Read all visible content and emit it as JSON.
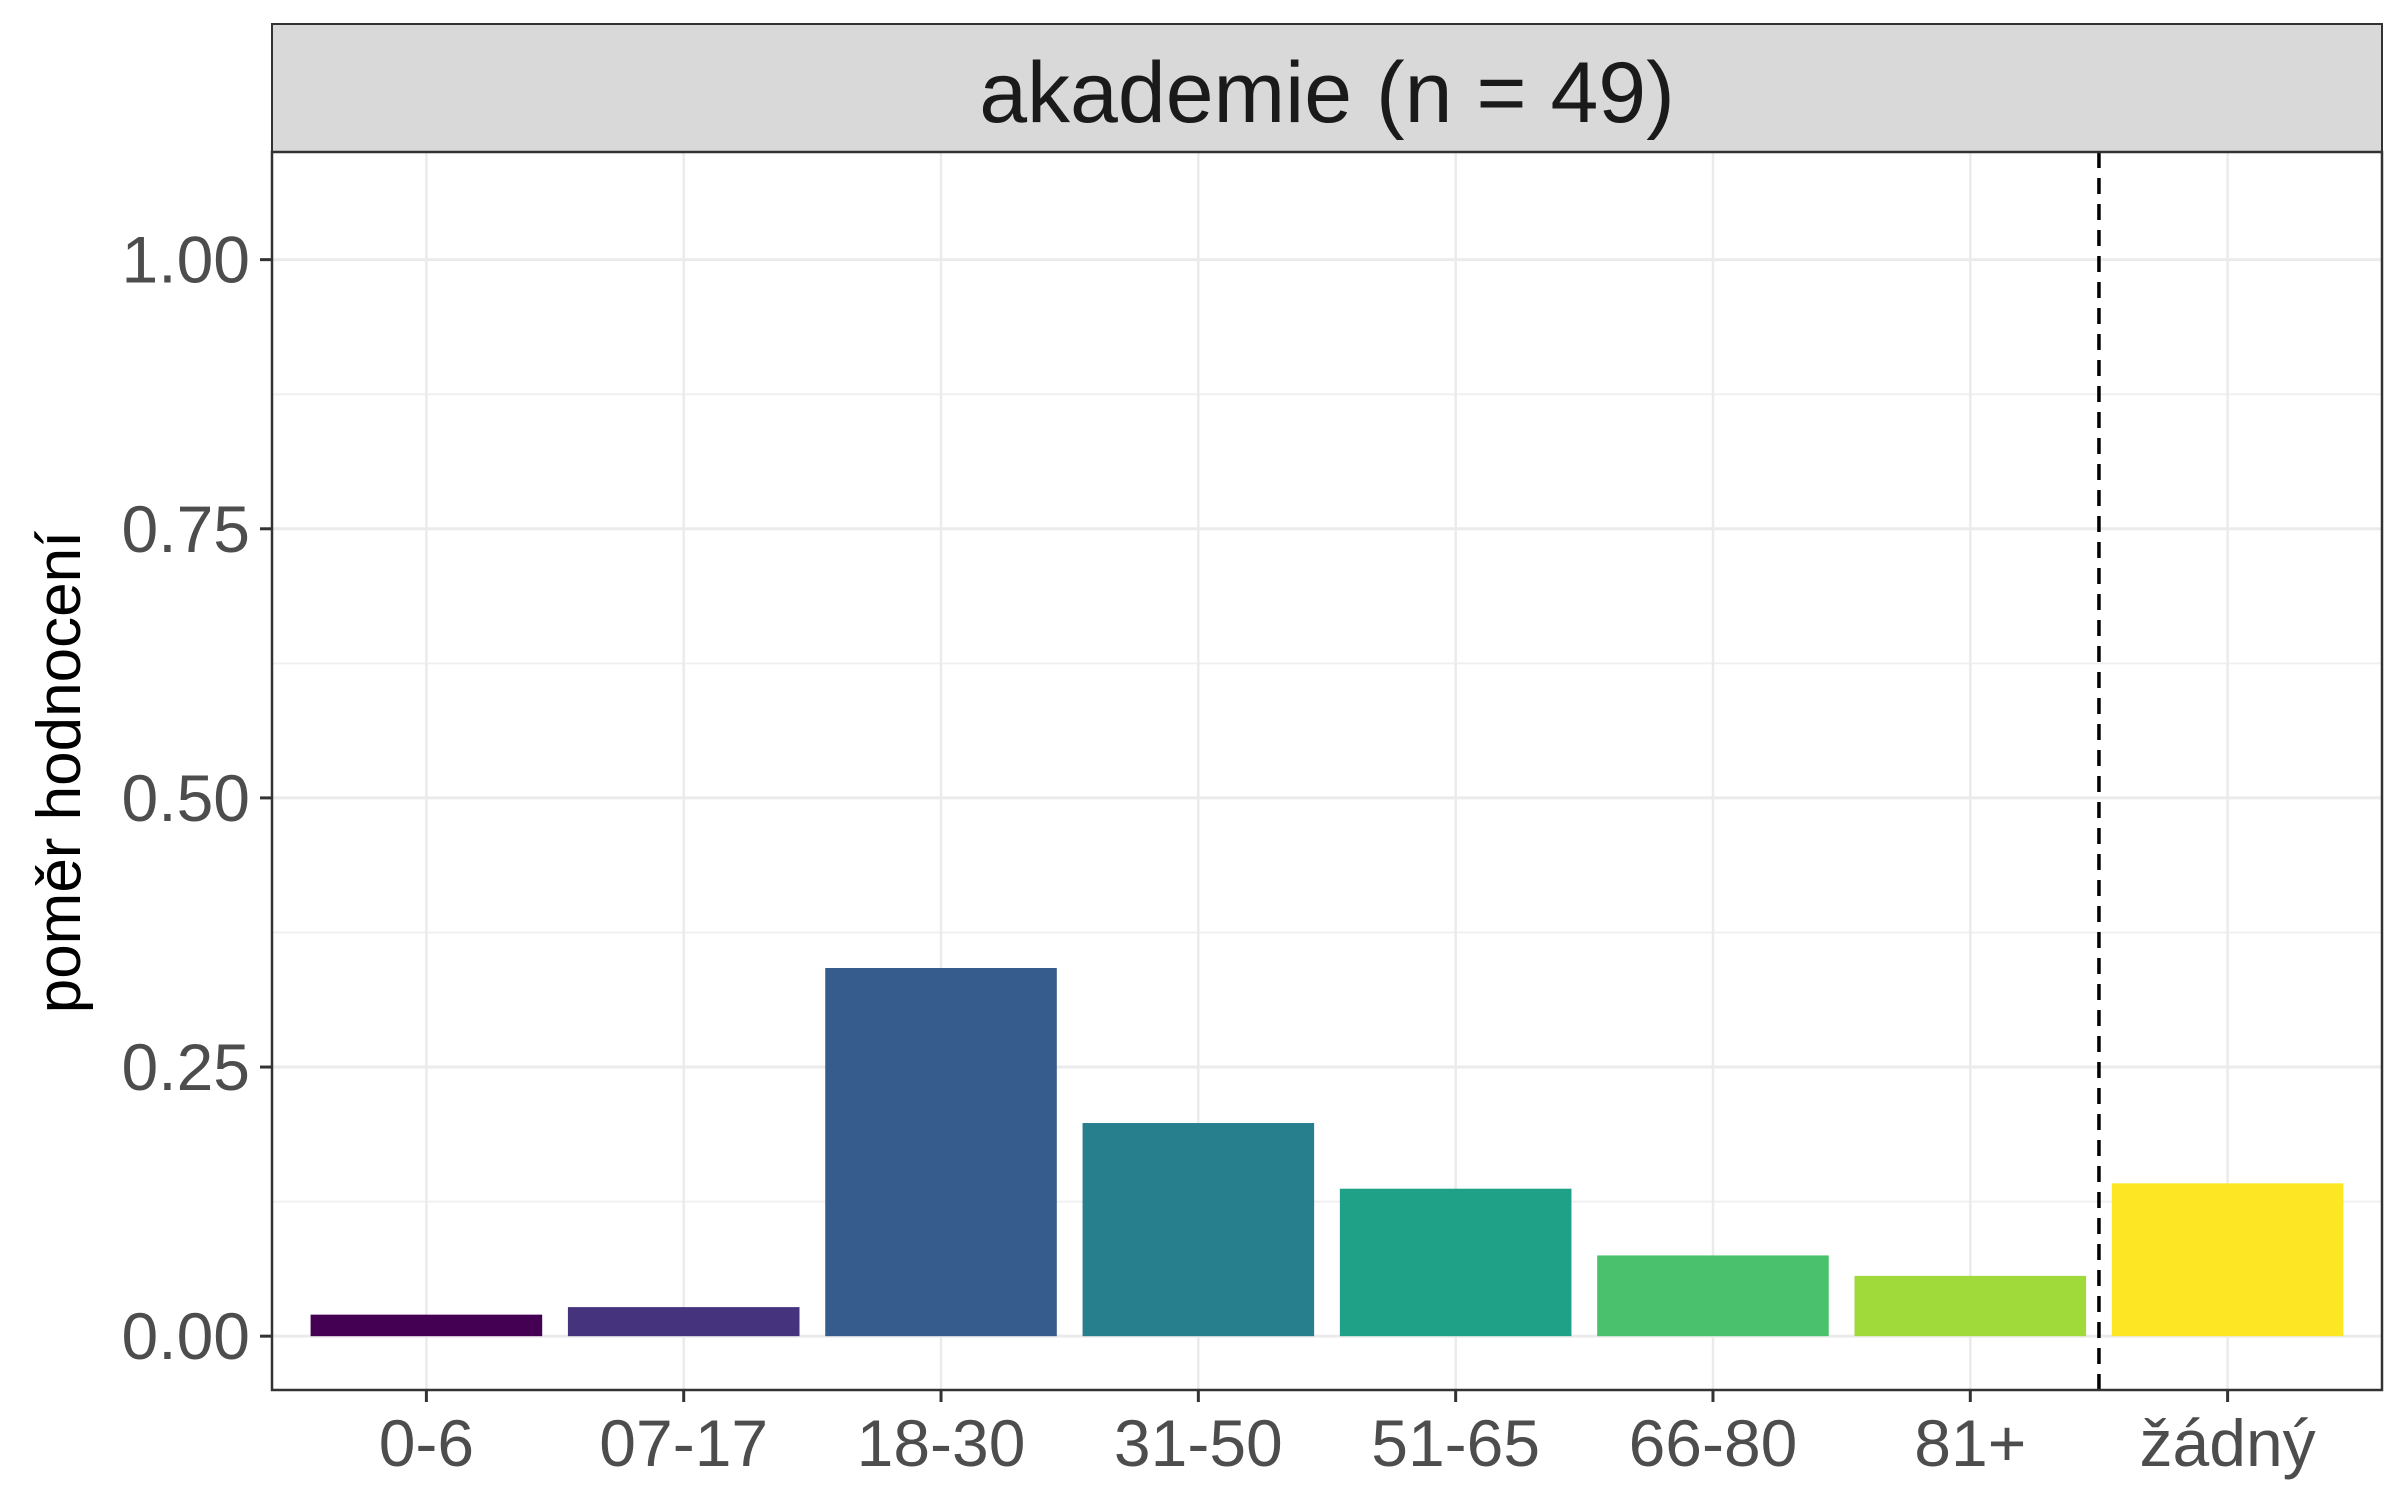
{
  "chart_data": {
    "type": "bar",
    "facet_title": "akademie (n = 49)",
    "ylabel": "poměr hodnocení",
    "xlabel": "",
    "ylim": [
      -0.05,
      1.1
    ],
    "yticks": [
      0.0,
      0.25,
      0.5,
      0.75,
      1.0
    ],
    "ytick_labels": [
      "0.00",
      "0.25",
      "0.50",
      "0.75",
      "1.00"
    ],
    "categories": [
      "0-6",
      "07-17",
      "18-30",
      "31-50",
      "51-65",
      "66-80",
      "81+",
      "žádný"
    ],
    "values": [
      0.02,
      0.027,
      0.342,
      0.198,
      0.137,
      0.075,
      0.056,
      0.142
    ],
    "colors": [
      "#440154",
      "#46337E",
      "#365C8D",
      "#277F8E",
      "#1FA187",
      "#4AC16D",
      "#9FDA3A",
      "#FDE725"
    ],
    "separator": "dashed vertical line between 81+ and žádný",
    "grid": true,
    "legend": "none"
  }
}
